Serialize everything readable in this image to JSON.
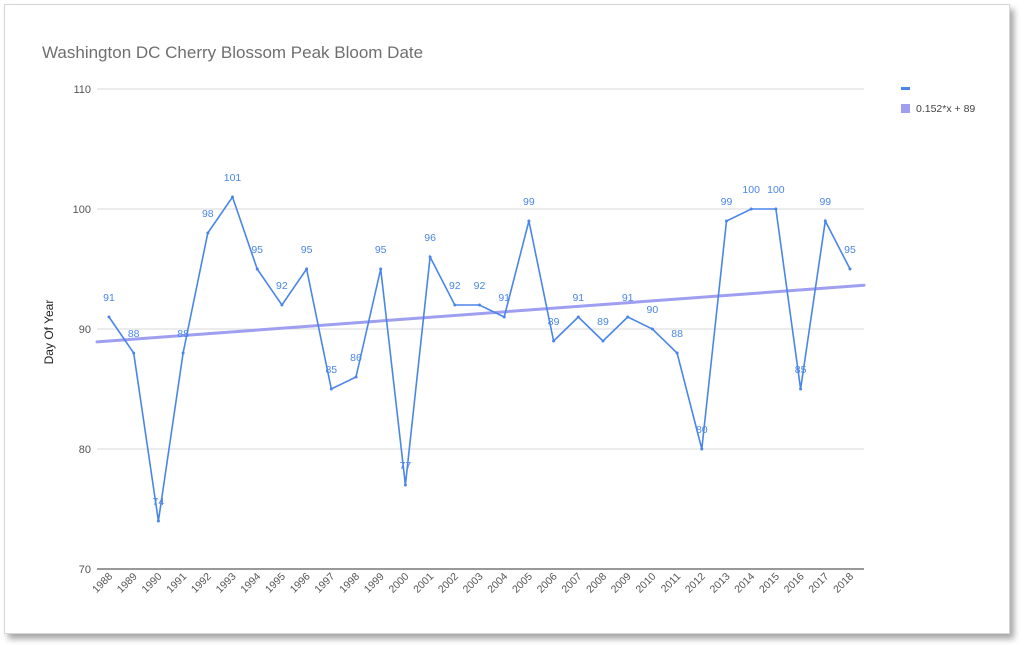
{
  "chart_data": {
    "type": "line",
    "title": "Washington DC Cherry Blossom Peak Bloom Date",
    "ylabel": "Day Of Year",
    "xlabel": "",
    "ylim": [
      70,
      110
    ],
    "yticks": [
      70,
      80,
      90,
      100,
      110
    ],
    "grid": true,
    "legend_position": "right",
    "categories": [
      "1988",
      "1989",
      "1990",
      "1991",
      "1992",
      "1993",
      "1994",
      "1995",
      "1996",
      "1997",
      "1998",
      "1999",
      "2000",
      "2001",
      "2002",
      "2003",
      "2004",
      "2005",
      "2006",
      "2007",
      "2008",
      "2009",
      "2010",
      "2011",
      "2012",
      "2013",
      "2014",
      "2015",
      "2016",
      "2017",
      "2018"
    ],
    "series": [
      {
        "name": "",
        "color": "#4a86e8",
        "values": [
          91,
          88,
          74,
          88,
          98,
          101,
          95,
          92,
          95,
          85,
          86,
          95,
          77,
          96,
          92,
          92,
          91,
          99,
          89,
          91,
          89,
          91,
          90,
          88,
          80,
          99,
          100,
          100,
          85,
          99,
          95
        ]
      }
    ],
    "trendline": {
      "label": "0.152*x + 89",
      "color": "#9e9ff0",
      "slope": 0.152,
      "intercept": 89
    }
  }
}
